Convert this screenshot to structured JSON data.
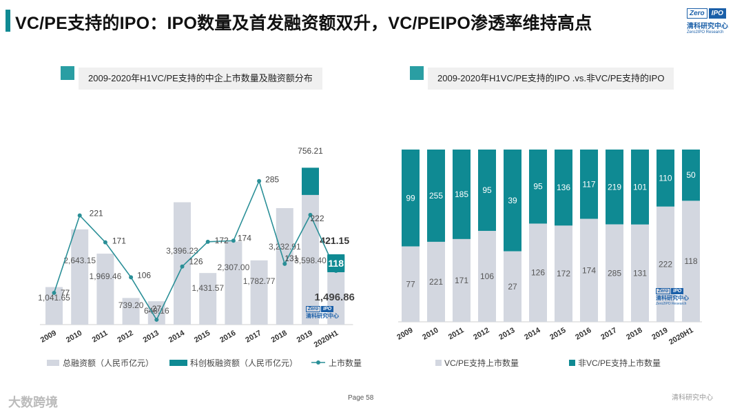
{
  "header": {
    "title": "VC/PE支持的IPO：IPO数量及首发融资额双升，VC/PEIPO渗透率维持高点",
    "watermark": "ZERO2IPO RESEARCH"
  },
  "logo": {
    "part1": "Zero",
    "part2": "IPO",
    "cn": "清科研究中心",
    "en": "Zero2IPO Research"
  },
  "left_panel": {
    "title": "2009-2020年H1VC/PE支持的中企上市数量及融资额分布"
  },
  "right_panel": {
    "title": "2009-2020年H1VC/PE支持的IPO .vs.非VC/PE支持的IPO"
  },
  "footer": {
    "page": "Page  58",
    "left_brand": "大数跨境",
    "right_brand": "清科研究中心"
  },
  "colors": {
    "teal": "#0f8a93",
    "bar_grey": "#d3d7e0",
    "line": "#2a8f97"
  },
  "chart_data": [
    {
      "type": "bar",
      "categories": [
        "2009",
        "2010",
        "2011",
        "2012",
        "2013",
        "2014",
        "2015",
        "2016",
        "2017",
        "2018",
        "2019",
        "2020H1"
      ],
      "series": [
        {
          "name": "总融资额（人民币亿元）",
          "values": [
            1041.65,
            2643.15,
            1969.46,
            739.2,
            648.16,
            3396.23,
            1431.57,
            2307.0,
            1782.77,
            3232.91,
            3598.4,
            1496.86
          ],
          "labels": [
            "1,041.65",
            "2,643.15",
            "1,969.46",
            "739.20",
            "648.16",
            "3,396.23",
            "1,431.57",
            "2,307.00",
            "1,782.77",
            "3,232.91",
            "3,598.40",
            "1,496.86"
          ]
        },
        {
          "name": "科创板融资额（人民币亿元）",
          "values": [
            0,
            0,
            0,
            0,
            0,
            0,
            0,
            0,
            0,
            0,
            756.21,
            421.15
          ],
          "labels": [
            "",
            "",
            "",
            "",
            "",
            "",
            "",
            "",
            "",
            "",
            "756.21",
            "421.15"
          ]
        },
        {
          "name": "上市数量",
          "values": [
            77,
            221,
            171,
            106,
            27,
            126,
            172,
            174,
            285,
            131,
            222,
            118
          ]
        }
      ],
      "secondary_highlight": "118"
    },
    {
      "type": "bar",
      "stacked": "percent",
      "categories": [
        "2009",
        "2010",
        "2011",
        "2012",
        "2013",
        "2014",
        "2015",
        "2016",
        "2017",
        "2018",
        "2019",
        "2020H1"
      ],
      "series": [
        {
          "name": "VC/PE支持上市数量",
          "values": [
            77,
            221,
            171,
            106,
            27,
            126,
            172,
            174,
            285,
            131,
            222,
            118
          ]
        },
        {
          "name": "非VC/PE支持上市数量",
          "values": [
            99,
            255,
            185,
            95,
            39,
            95,
            136,
            117,
            219,
            101,
            110,
            50
          ]
        }
      ]
    }
  ]
}
